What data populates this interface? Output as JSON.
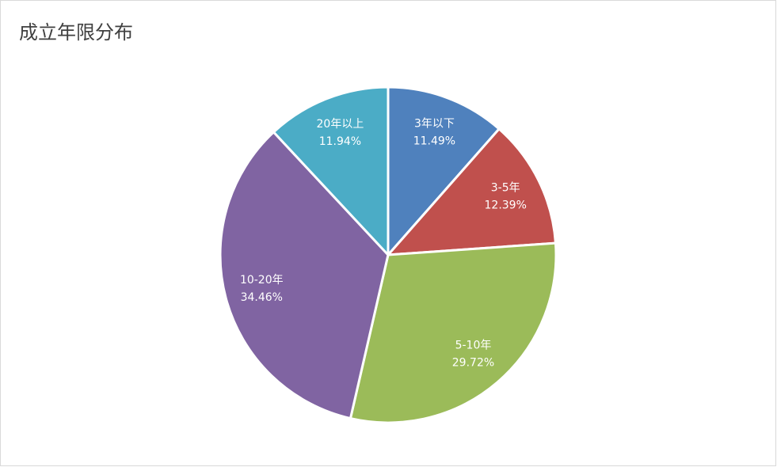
{
  "chart_data": {
    "type": "pie",
    "title": "成立年限分布",
    "categories": [
      "3年以下",
      "3-5年",
      "5-10年",
      "10-20年",
      "20年以上"
    ],
    "values": [
      11.49,
      12.39,
      29.72,
      34.46,
      11.94
    ],
    "value_labels": [
      "11.49%",
      "12.39%",
      "29.72%",
      "34.46%",
      "11.94%"
    ],
    "colors": [
      "#4f81bd",
      "#c0504d",
      "#9bbb59",
      "#8064a2",
      "#4bacc6"
    ]
  }
}
